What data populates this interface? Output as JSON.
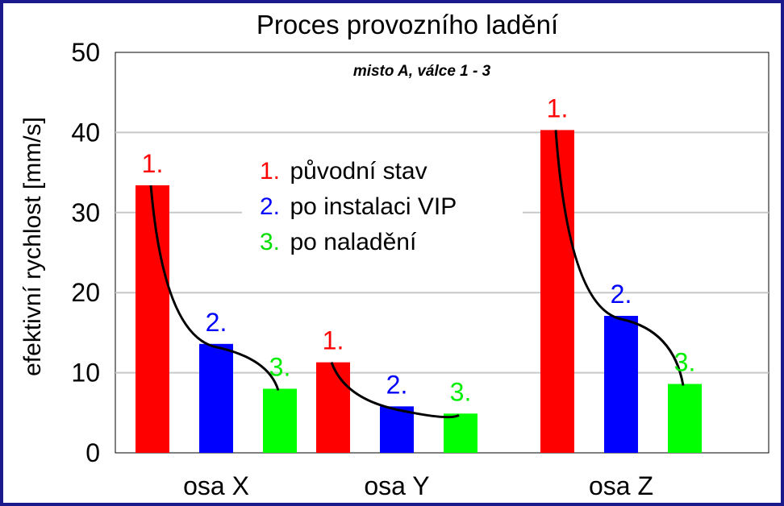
{
  "chart_data": {
    "type": "bar",
    "title": "Proces provozního ladění",
    "subtitle": "misto A, válce 1 - 3",
    "ylabel": "efektivní rychlost [mm/s]",
    "xlabel": "",
    "ylim": [
      0,
      50
    ],
    "yticks": [
      "0",
      "10",
      "20",
      "30",
      "40",
      "50"
    ],
    "grid": true,
    "categories": [
      "osa X",
      "osa Y",
      "osa Z"
    ],
    "series": [
      {
        "label": "1.",
        "legend_num": "1.",
        "legend_text": "původní stav",
        "color": "#ff0000",
        "values": [
          33.4,
          11.3,
          40.3
        ]
      },
      {
        "label": "2.",
        "legend_num": "2.",
        "legend_text": "po instalaci VIP",
        "color": "#0000ff",
        "values": [
          13.6,
          5.8,
          17.1
        ]
      },
      {
        "label": "3.",
        "legend_num": "3.",
        "legend_text": "po naladění",
        "color": "#00ff00",
        "values": [
          8.0,
          4.9,
          8.6
        ]
      }
    ],
    "legend_position": "top-center",
    "trend_line_color": "#000000"
  }
}
